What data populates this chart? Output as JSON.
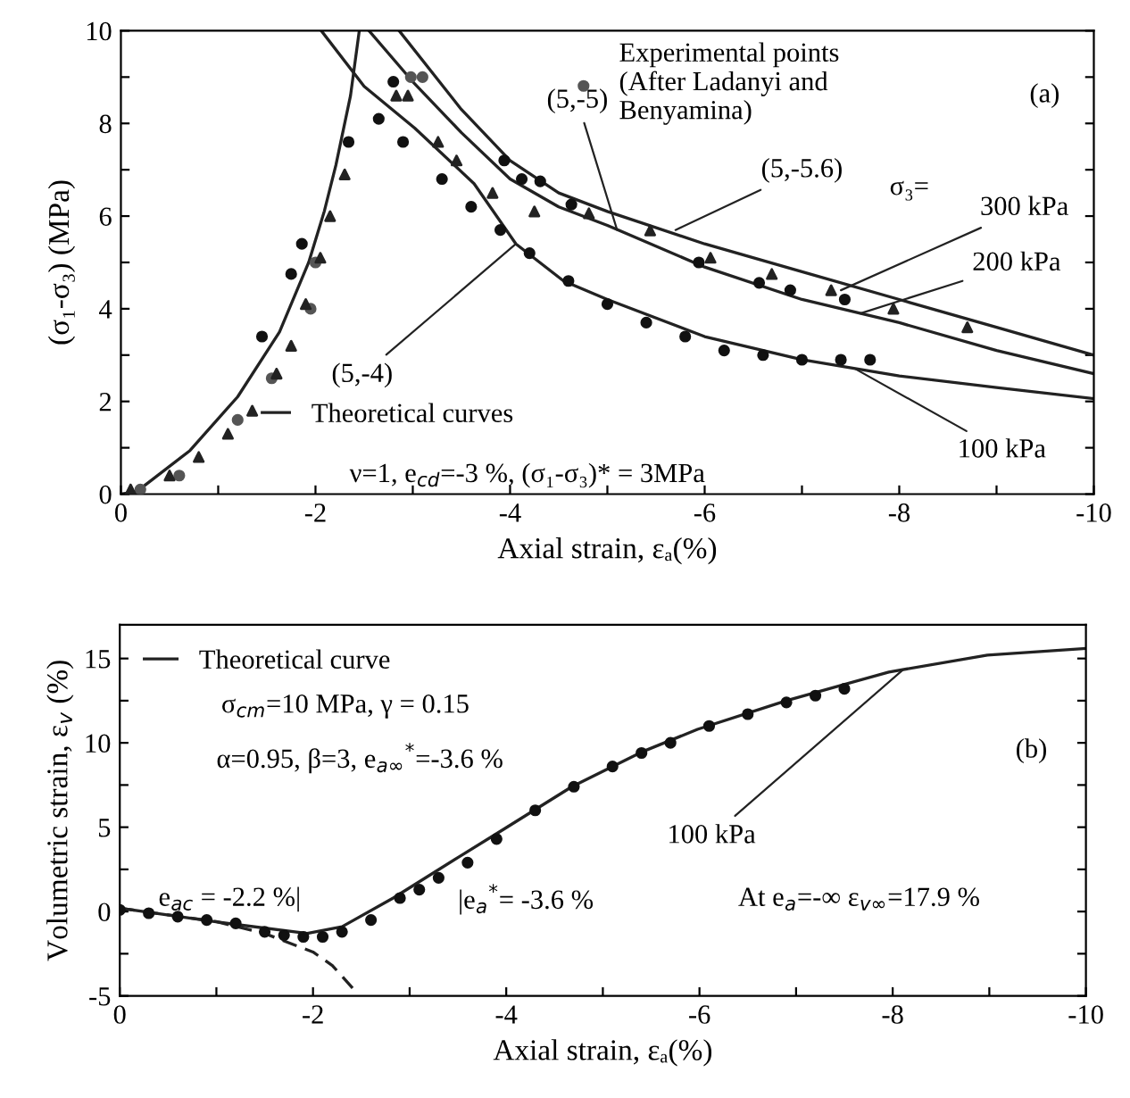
{
  "chart_data": [
    {
      "type": "line",
      "xlabel": "Axial strain, εₐ(%)",
      "ylabel": "(σ₁-σ₃) (MPa)",
      "xlim": [
        0,
        -10
      ],
      "ylim": [
        0,
        10
      ],
      "xticks": [
        0,
        {
          "value": -1,
          "label": null
        },
        -2,
        {
          "value": -3,
          "label": null
        },
        -4,
        {
          "value": -5,
          "label": null
        },
        -6,
        {
          "value": -7,
          "label": null
        },
        -8,
        {
          "value": -9,
          "label": null
        },
        -10
      ],
      "yticks": [
        0,
        {
          "value": 1,
          "label": null
        },
        2,
        {
          "value": 3,
          "label": null
        },
        4,
        {
          "value": 5,
          "label": null
        },
        6,
        {
          "value": 7,
          "label": null
        },
        8,
        {
          "value": 9,
          "label": null
        },
        10
      ],
      "grid": false,
      "legend": "top",
      "series": [
        {
          "name": "Theoretical curves",
          "color": "#222222",
          "x": [
            0,
            -0.16,
            -0.71,
            -1.2,
            -1.63,
            -1.93,
            -2.09,
            -2.21,
            -2.36,
            -2.45
          ],
          "values": [
            0,
            0.05,
            0.94,
            2.1,
            3.5,
            5.0,
            6.1,
            7.1,
            8.6,
            10
          ]
        },
        {
          "color": "#222222",
          "x": [
            -2.06,
            -2.5,
            -3.02,
            -3.63,
            -4.06,
            -4.55,
            -5,
            -6,
            -7,
            -8,
            -9,
            -10
          ],
          "values": [
            10,
            8.8,
            7.9,
            6.7,
            5.4,
            4.6,
            4.2,
            3.4,
            2.9,
            2.55,
            2.3,
            2.06
          ]
        },
        {
          "color": "#222222",
          "x": [
            -2.55,
            -3,
            -3.5,
            -4,
            -4.5,
            -5,
            -6,
            -7,
            -8,
            -9,
            -10
          ],
          "values": [
            10,
            8.9,
            7.8,
            6.8,
            6.2,
            5.8,
            4.9,
            4.2,
            3.7,
            3.1,
            2.6
          ]
        },
        {
          "color": "#222222",
          "x": [
            -2.86,
            -3.5,
            -4,
            -4.5,
            -5,
            -6,
            -7,
            -8,
            -9,
            -10
          ],
          "values": [
            10,
            8.3,
            7.2,
            6.5,
            6.1,
            5.4,
            4.8,
            4.2,
            3.6,
            3.0
          ]
        },
        {
          "type": "scatter",
          "name": "Experimental points\n(After Ladanyi and\nBenyamina)",
          "marker": "circle",
          "color": "#555555",
          "x": [
            -0.2,
            -0.6,
            -1.2,
            -1.55,
            -1.95,
            -2.0,
            -2.98,
            -3.1
          ],
          "values": [
            0.1,
            0.4,
            1.6,
            2.5,
            4.0,
            5.0,
            9.0,
            9.0
          ]
        },
        {
          "type": "scatter",
          "marker": "triangle",
          "color": "#222222",
          "x": [
            -0.1,
            -0.5,
            -0.8,
            -1.1,
            -1.35,
            -1.6,
            -1.75,
            -1.9,
            -2.05,
            -2.15,
            -2.3,
            -2.83,
            -2.95,
            -3.26,
            -3.45,
            -3.82,
            -4.25,
            -4.81,
            -5.44,
            -6.06,
            -6.69,
            -7.3,
            -7.94,
            -8.7
          ],
          "values": [
            0.1,
            0.4,
            0.8,
            1.3,
            1.8,
            2.6,
            3.2,
            4.1,
            5.1,
            6.0,
            6.9,
            8.6,
            8.6,
            7.6,
            7.2,
            6.5,
            6.1,
            6.06,
            5.69,
            5.1,
            4.75,
            4.4,
            4.0,
            3.6
          ]
        },
        {
          "type": "scatter",
          "marker": "circle",
          "color": "#111111",
          "x": [
            -1.45,
            -1.75,
            -1.86,
            -2.34,
            -2.65,
            -2.8,
            -2.9,
            -3.3,
            -3.6,
            -3.9,
            -4.2,
            -4.6,
            -5.0,
            -5.4,
            -5.8,
            -6.2,
            -6.6,
            -7.0,
            -7.4,
            -7.7,
            -3.94,
            -4.12,
            -4.31,
            -4.63,
            -5.94,
            -6.56,
            -6.88,
            -7.44
          ],
          "values": [
            3.4,
            4.75,
            5.4,
            7.6,
            8.1,
            8.9,
            7.6,
            6.8,
            6.2,
            5.7,
            5.2,
            4.6,
            4.1,
            3.7,
            3.4,
            3.1,
            3.0,
            2.9,
            2.9,
            2.9,
            7.2,
            6.8,
            6.75,
            6.25,
            5.0,
            4.56,
            4.4,
            4.2
          ]
        }
      ],
      "annotations": [
        "(a)",
        "σ₃=",
        "ν=1, e$_{cd}$=-3 %, (σ₁-σ₃)* = 3MPa",
        {
          "text": "(5,-4)",
          "x": -4.06,
          "y": 5.4
        },
        {
          "text": "(5,-5)",
          "x": -5.1,
          "y": 5.7
        },
        {
          "text": "(5,-5.6)",
          "x": -5.7,
          "y": 5.7
        },
        {
          "text": "300 kPa",
          "x": -7.4,
          "y": 4.4
        },
        {
          "text": "200 kPa",
          "x": -7.6,
          "y": 3.9
        },
        {
          "text": "100 kPa",
          "x": -7.55,
          "y": 2.7
        }
      ]
    },
    {
      "type": "line",
      "xlabel": "Axial strain, εₐ(%)",
      "ylabel": "Volumetric strain, ε$_{v}$ (%)",
      "xlim": [
        0,
        -10
      ],
      "ylim": [
        -5,
        17
      ],
      "xticks": [
        0,
        {
          "value": -1,
          "label": null
        },
        -2,
        {
          "value": -3,
          "label": null
        },
        -4,
        {
          "value": -5,
          "label": null
        },
        -6,
        {
          "value": -7,
          "label": null
        },
        -8,
        {
          "value": -9,
          "label": null
        },
        -10
      ],
      "yticks": [
        -5,
        {
          "value": -2.5,
          "label": null
        },
        0,
        {
          "value": 2.5,
          "label": null
        },
        5,
        {
          "value": 7.5,
          "label": null
        },
        10,
        {
          "value": 12.5,
          "label": null
        },
        15
      ],
      "grid": false,
      "legend": "top left",
      "series": [
        {
          "name": "Theoretical curve",
          "color": "#222222",
          "x": [
            0,
            -0.98,
            -1.94,
            -2.3,
            -2.83,
            -3.5,
            -3.98,
            -4.68,
            -5.42,
            -5.98,
            -6.9,
            -7.96,
            -8.98,
            -10
          ],
          "values": [
            0.2,
            -0.6,
            -1.3,
            -0.9,
            0.8,
            3.2,
            4.9,
            7.4,
            9.5,
            10.8,
            12.5,
            14.2,
            15.2,
            15.6
          ]
        },
        {
          "line_style": "dashed",
          "color": "#222222",
          "x": [
            0,
            -1,
            -1.5,
            -2,
            -2.2,
            -2.42
          ],
          "values": [
            0.2,
            -0.6,
            -1.3,
            -2.4,
            -3.2,
            -4.6
          ]
        },
        {
          "type": "scatter",
          "marker": "circle",
          "color": "#111111",
          "x": [
            0,
            -0.3,
            -0.6,
            -0.9,
            -1.2,
            -1.5,
            -1.7,
            -1.9,
            -2.1,
            -2.3,
            -2.6,
            -2.9,
            -3.1,
            -3.3,
            -3.6,
            -3.9,
            -4.3,
            -4.7,
            -5.1,
            -5.4,
            -5.7,
            -6.1,
            -6.5,
            -6.9,
            -7.2,
            -7.5
          ],
          "values": [
            0.1,
            -0.1,
            -0.3,
            -0.5,
            -0.7,
            -1.2,
            -1.4,
            -1.5,
            -1.5,
            -1.2,
            -0.5,
            0.8,
            1.3,
            2.0,
            2.9,
            4.3,
            6.0,
            7.4,
            8.6,
            9.4,
            10.0,
            11.0,
            11.7,
            12.4,
            12.8,
            13.2
          ]
        }
      ],
      "annotations": [
        "(b)",
        "σ$_{cm}$=10 MPa, γ = 0.15",
        "α=0.95, β=3, e$_{a∞}$$^{*}$=-3.6 %",
        "e$_{ac}$ = -2.2 %|",
        "|e$_{a}$$^{*}$= -3.6 %",
        "At e$_{a}$=-∞ ε$_{v∞}$=17.9 %",
        {
          "text": "100 kPa",
          "x": -8.1,
          "y": 14.3
        }
      ]
    }
  ]
}
